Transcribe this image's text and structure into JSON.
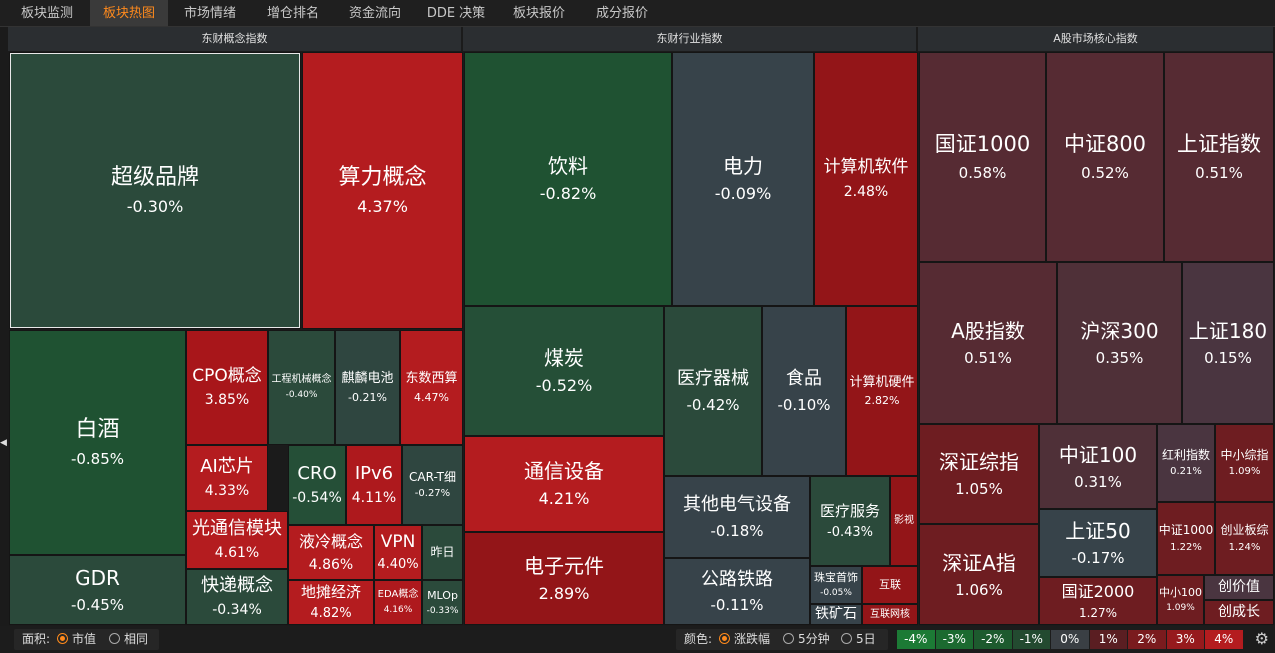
{
  "tabs": [
    "板块监测",
    "板块热图",
    "市场情绪",
    "增仓排名",
    "资金流向",
    "DDE 决策",
    "板块报价",
    "成分报价"
  ],
  "panels": [
    "东财概念指数",
    "东财行业指数",
    "A股市场核心指数"
  ],
  "cells": [
    {
      "name": "超级品牌",
      "pct": "-0.30%",
      "change": -0.3,
      "color": "#2b4a3b"
    },
    {
      "name": "算力概念",
      "pct": "4.37%",
      "change": 4.37,
      "color": "#b41c1f"
    },
    {
      "name": "白酒",
      "pct": "-0.85%",
      "change": -0.85,
      "color": "#1f5232"
    },
    {
      "name": "GDR",
      "pct": "-0.45%",
      "change": -0.45,
      "color": "#2b4a3b"
    },
    {
      "name": "CPO概念",
      "pct": "3.85%",
      "change": 3.85,
      "color": "#a8161a"
    },
    {
      "name": "工程机械概念",
      "pct": "-0.40%",
      "change": -0.4,
      "color": "#2b4a3b"
    },
    {
      "name": "麒麟电池",
      "pct": "-0.21%",
      "change": -0.21,
      "color": "#2f4640"
    },
    {
      "name": "东数西算",
      "pct": "4.47%",
      "change": 4.47,
      "color": "#b41c1f"
    },
    {
      "name": "AI芯片",
      "pct": "4.33%",
      "change": 4.33,
      "color": "#b41c1f"
    },
    {
      "name": "CRO",
      "pct": "-0.54%",
      "change": -0.54,
      "color": "#254f37"
    },
    {
      "name": "IPv6",
      "pct": "4.11%",
      "change": 4.11,
      "color": "#ae191d"
    },
    {
      "name": "CAR-T细",
      "pct": "-0.27%",
      "change": -0.27,
      "color": "#2f4640"
    },
    {
      "name": "光通信模块",
      "pct": "4.61%",
      "change": 4.61,
      "color": "#b41c1f"
    },
    {
      "name": "快递概念",
      "pct": "-0.34%",
      "change": -0.34,
      "color": "#2b4a3b"
    },
    {
      "name": "液冷概念",
      "pct": "4.86%",
      "change": 4.86,
      "color": "#b41c1f"
    },
    {
      "name": "VPN",
      "pct": "4.40%",
      "change": 4.4,
      "color": "#b41c1f"
    },
    {
      "name": "昨日",
      "pct": "",
      "change": null,
      "color": "#2b4a3b"
    },
    {
      "name": "地摊经济",
      "pct": "4.82%",
      "change": 4.82,
      "color": "#b41c1f"
    },
    {
      "name": "EDA概念",
      "pct": "4.16%",
      "change": 4.16,
      "color": "#ae191d"
    },
    {
      "name": "MLOp",
      "pct": "-0.33%",
      "change": -0.33,
      "color": "#2b4a3b"
    },
    {
      "name": "饮料",
      "pct": "-0.82%",
      "change": -0.82,
      "color": "#1f5232"
    },
    {
      "name": "电力",
      "pct": "-0.09%",
      "change": -0.09,
      "color": "#37434a"
    },
    {
      "name": "计算机软件",
      "pct": "2.48%",
      "change": 2.48,
      "color": "#931518"
    },
    {
      "name": "煤炭",
      "pct": "-0.52%",
      "change": -0.52,
      "color": "#254f37"
    },
    {
      "name": "医疗器械",
      "pct": "-0.42%",
      "change": -0.42,
      "color": "#2b4a3b"
    },
    {
      "name": "食品",
      "pct": "-0.10%",
      "change": -0.1,
      "color": "#37434a"
    },
    {
      "name": "计算机硬件",
      "pct": "2.82%",
      "change": 2.82,
      "color": "#931518"
    },
    {
      "name": "通信设备",
      "pct": "4.21%",
      "change": 4.21,
      "color": "#b41c1f"
    },
    {
      "name": "其他电气设备",
      "pct": "-0.18%",
      "change": -0.18,
      "color": "#37434a"
    },
    {
      "name": "医疗服务",
      "pct": "-0.43%",
      "change": -0.43,
      "color": "#2b4a3b"
    },
    {
      "name": "影视",
      "pct": "",
      "change": null,
      "color": "#931518"
    },
    {
      "name": "电子元件",
      "pct": "2.89%",
      "change": 2.89,
      "color": "#931518"
    },
    {
      "name": "公路铁路",
      "pct": "-0.11%",
      "change": -0.11,
      "color": "#37434a"
    },
    {
      "name": "珠宝首饰",
      "pct": "-0.05%",
      "change": -0.05,
      "color": "#37434a"
    },
    {
      "name": "互联",
      "pct": "",
      "change": null,
      "color": "#931518"
    },
    {
      "name": "铁矿石",
      "pct": "",
      "change": null,
      "color": "#37434a"
    },
    {
      "name": "互联网核",
      "pct": "",
      "change": null,
      "color": "#931518"
    },
    {
      "name": "国证1000",
      "pct": "0.58%",
      "change": 0.58,
      "color": "#562b33"
    },
    {
      "name": "中证800",
      "pct": "0.52%",
      "change": 0.52,
      "color": "#562b33"
    },
    {
      "name": "上证指数",
      "pct": "0.51%",
      "change": 0.51,
      "color": "#562b33"
    },
    {
      "name": "A股指数",
      "pct": "0.51%",
      "change": 0.51,
      "color": "#562b33"
    },
    {
      "name": "沪深300",
      "pct": "0.35%",
      "change": 0.35,
      "color": "#4f3038"
    },
    {
      "name": "上证180",
      "pct": "0.15%",
      "change": 0.15,
      "color": "#4a3540"
    },
    {
      "name": "深证综指",
      "pct": "1.05%",
      "change": 1.05,
      "color": "#6e1d21"
    },
    {
      "name": "中证100",
      "pct": "0.31%",
      "change": 0.31,
      "color": "#4f3038"
    },
    {
      "name": "红利指数",
      "pct": "0.21%",
      "change": 0.21,
      "color": "#4a3540"
    },
    {
      "name": "中小综指",
      "pct": "1.09%",
      "change": 1.09,
      "color": "#6e1d21"
    },
    {
      "name": "上证50",
      "pct": "-0.17%",
      "change": -0.17,
      "color": "#37434a"
    },
    {
      "name": "深证A指",
      "pct": "1.06%",
      "change": 1.06,
      "color": "#6e1d21"
    },
    {
      "name": "中证1000",
      "pct": "1.22%",
      "change": 1.22,
      "color": "#6e1d21"
    },
    {
      "name": "创业板综",
      "pct": "1.24%",
      "change": 1.24,
      "color": "#6e1d21"
    },
    {
      "name": "国证2000",
      "pct": "1.27%",
      "change": 1.27,
      "color": "#6e1d21"
    },
    {
      "name": "中小100",
      "pct": "1.09%",
      "change": 1.09,
      "color": "#6e1d21"
    },
    {
      "name": "创价值",
      "pct": "",
      "change": null,
      "color": "#4a3540"
    },
    {
      "name": "创成长",
      "pct": "",
      "change": null,
      "color": "#6e1d21"
    }
  ],
  "footer": {
    "area_label": "面积:",
    "area_options": [
      "市值",
      "相同"
    ],
    "area_selected": "市值",
    "color_label": "颜色:",
    "color_options": [
      "涨跌幅",
      "5分钟",
      "5日"
    ],
    "color_selected": "涨跌幅",
    "legend": [
      {
        "label": "-4%",
        "color": "#1c7a35"
      },
      {
        "label": "-3%",
        "color": "#1b6a30"
      },
      {
        "label": "-2%",
        "color": "#1d5a2e"
      },
      {
        "label": "-1%",
        "color": "#234a30"
      },
      {
        "label": "0%",
        "color": "#3a3f44"
      },
      {
        "label": "1%",
        "color": "#5a1e22"
      },
      {
        "label": "2%",
        "color": "#7a1b1e"
      },
      {
        "label": "3%",
        "color": "#961a1d"
      },
      {
        "label": "4%",
        "color": "#b41c1f"
      }
    ],
    "settings_icon": "gear-icon"
  }
}
